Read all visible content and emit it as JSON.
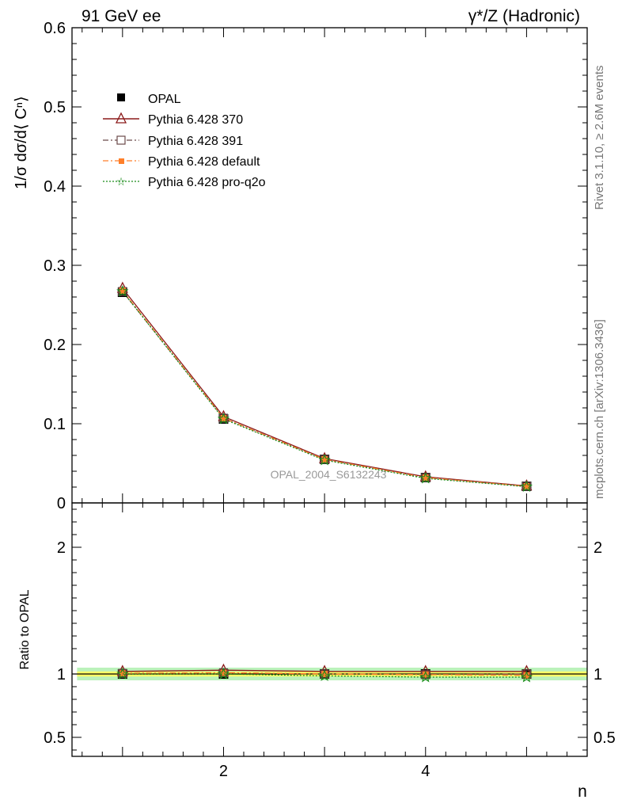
{
  "header": {
    "left_label": "91 GeV ee",
    "right_label": "γ*/Z (Hadronic)"
  },
  "side_labels": {
    "rivet": "Rivet 3.1.10, ≥ 2.6M events",
    "mcplots": "mcplots.cern.ch [arXiv:1306.3436]"
  },
  "watermark": "OPAL_2004_S6132243",
  "chart_data": [
    {
      "type": "line",
      "ylabel": "1/σ dσ/d⟨ Cⁿ⟩",
      "xlabel": "n",
      "xlim": [
        0.5,
        5.6
      ],
      "ylim": [
        0,
        0.6
      ],
      "ytick_labels": [
        "0",
        "0.1",
        "0.2",
        "0.3",
        "0.4",
        "0.5",
        "0.6"
      ],
      "yticks": [
        0,
        0.1,
        0.2,
        0.3,
        0.4,
        0.5,
        0.6
      ],
      "x": [
        1,
        2,
        3,
        4,
        5
      ],
      "legend_position": "top-left",
      "series": [
        {
          "name": "OPAL",
          "values": [
            0.266,
            0.106,
            0.055,
            0.032,
            0.021
          ],
          "color": "#000000",
          "marker": "filled-square",
          "style": "data"
        },
        {
          "name": "Pythia 6.428 370",
          "values": [
            0.271,
            0.109,
            0.056,
            0.033,
            0.0215
          ],
          "color": "#8b1a1a",
          "marker": "open-triangle",
          "style": "solid"
        },
        {
          "name": "Pythia 6.428 391",
          "values": [
            0.267,
            0.107,
            0.055,
            0.032,
            0.021
          ],
          "color": "#6b4a4a",
          "marker": "open-square",
          "style": "dashdot"
        },
        {
          "name": "Pythia 6.428 default",
          "values": [
            0.268,
            0.107,
            0.055,
            0.032,
            0.021
          ],
          "color": "#ff7f2a",
          "marker": "filled-square-small",
          "style": "dashdot"
        },
        {
          "name": "Pythia 6.428 pro-q2o",
          "values": [
            0.267,
            0.106,
            0.054,
            0.031,
            0.0205
          ],
          "color": "#1a8c1a",
          "marker": "open-star",
          "style": "dotted"
        }
      ]
    },
    {
      "type": "line",
      "ylabel": "Ratio to OPAL",
      "xlabel": "n",
      "xlim": [
        0.5,
        5.6
      ],
      "ylim": [
        0.35,
        2.35
      ],
      "yticks": [
        0.5,
        1,
        2
      ],
      "ytick_labels": [
        "0.5",
        "1",
        "2"
      ],
      "xticks": [
        2,
        4
      ],
      "xtick_labels": [
        "2",
        "4"
      ],
      "x": [
        1,
        2,
        3,
        4,
        5
      ],
      "band_inner_halfwidth": 0.02,
      "band_outer_halfwidth": 0.05,
      "band_colors": {
        "inner": "#ffff66",
        "outer": "#bbf2bb"
      },
      "series": [
        {
          "name": "Pythia 6.428 370",
          "values": [
            1.02,
            1.03,
            1.02,
            1.02,
            1.02
          ]
        },
        {
          "name": "Pythia 6.428 391",
          "values": [
            1.005,
            1.01,
            1.0,
            0.995,
            1.0
          ]
        },
        {
          "name": "Pythia 6.428 default",
          "values": [
            1.005,
            1.01,
            1.0,
            0.995,
            0.99
          ]
        },
        {
          "name": "Pythia 6.428 pro-q2o",
          "values": [
            1.0,
            1.0,
            0.985,
            0.975,
            0.975
          ]
        }
      ]
    }
  ]
}
